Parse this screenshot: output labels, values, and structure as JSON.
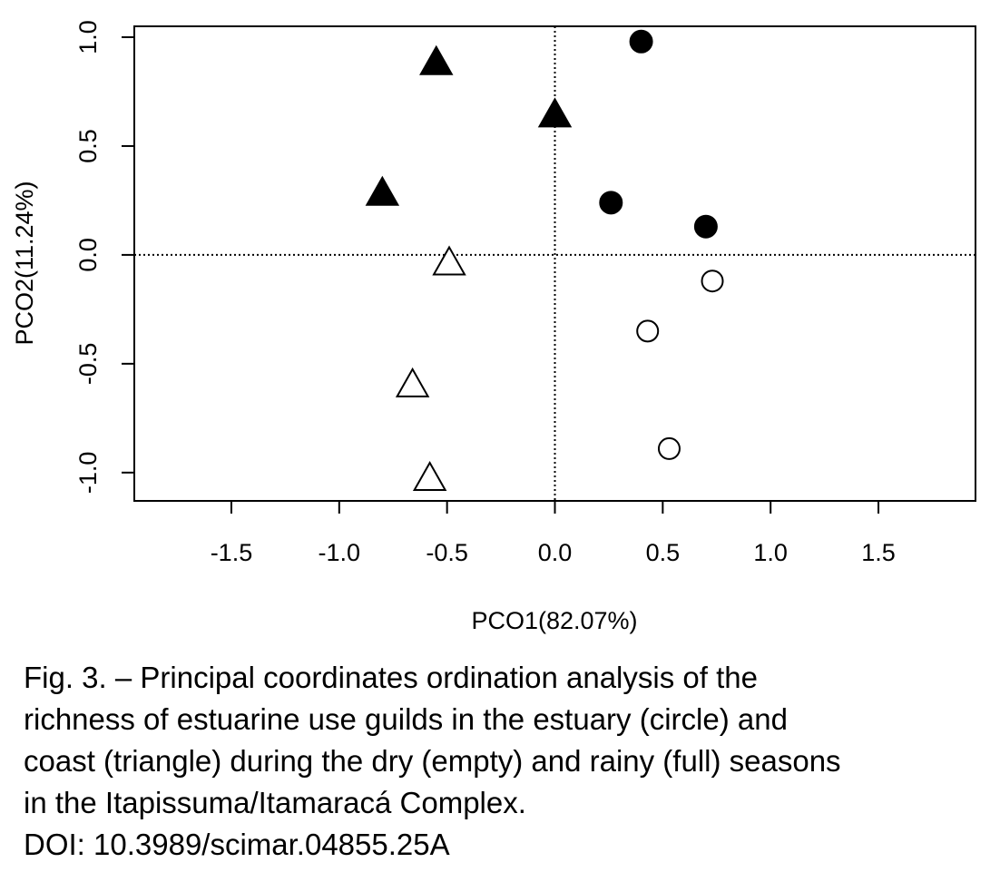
{
  "chart_data": {
    "type": "scatter",
    "title": "",
    "xlabel": "PCO1(82.07%)",
    "ylabel": "PCO2(11.24%)",
    "xlim": [
      -1.95,
      1.95
    ],
    "ylim": [
      -1.13,
      1.05
    ],
    "x_ticks": [
      -1.5,
      -1.0,
      -0.5,
      0.0,
      0.5,
      1.0,
      1.5
    ],
    "x_tick_labels": [
      "-1.5",
      "-1.0",
      "-0.5",
      "0.0",
      "0.5",
      "1.0",
      "1.5"
    ],
    "y_ticks": [
      -1.0,
      -0.5,
      0.0,
      0.5,
      1.0
    ],
    "y_tick_labels": [
      "-1.0",
      "-0.5",
      "0.0",
      "0.5",
      "1.0"
    ],
    "reference_lines": {
      "x": 0.0,
      "y": 0.0,
      "style": "dotted"
    },
    "grid": false,
    "legend": "none",
    "series": [
      {
        "marker": "circle",
        "filled": true,
        "color": "#000000",
        "points": [
          {
            "x": 0.4,
            "y": 0.98
          },
          {
            "x": 0.26,
            "y": 0.24
          },
          {
            "x": 0.7,
            "y": 0.13
          }
        ]
      },
      {
        "marker": "circle",
        "filled": false,
        "color": "#000000",
        "points": [
          {
            "x": 0.73,
            "y": -0.12
          },
          {
            "x": 0.43,
            "y": -0.35
          },
          {
            "x": 0.53,
            "y": -0.89
          }
        ]
      },
      {
        "marker": "triangle",
        "filled": true,
        "color": "#000000",
        "points": [
          {
            "x": -0.55,
            "y": 0.88
          },
          {
            "x": 0.0,
            "y": 0.64
          },
          {
            "x": -0.8,
            "y": 0.28
          }
        ]
      },
      {
        "marker": "triangle",
        "filled": false,
        "color": "#000000",
        "points": [
          {
            "x": -0.49,
            "y": -0.04
          },
          {
            "x": -0.66,
            "y": -0.6
          },
          {
            "x": -0.58,
            "y": -1.03
          }
        ]
      }
    ]
  },
  "caption": {
    "line1": "Fig. 3. – Principal coordinates ordination analysis of the",
    "line2": "richness of estuarine use guilds in the estuary (circle) and",
    "line3": "coast (triangle) during the dry (empty) and rainy (full) seasons",
    "line4": "in the Itapissuma/Itamaracá Complex.",
    "doi": "DOI: 10.3989/scimar.04855.25A"
  }
}
